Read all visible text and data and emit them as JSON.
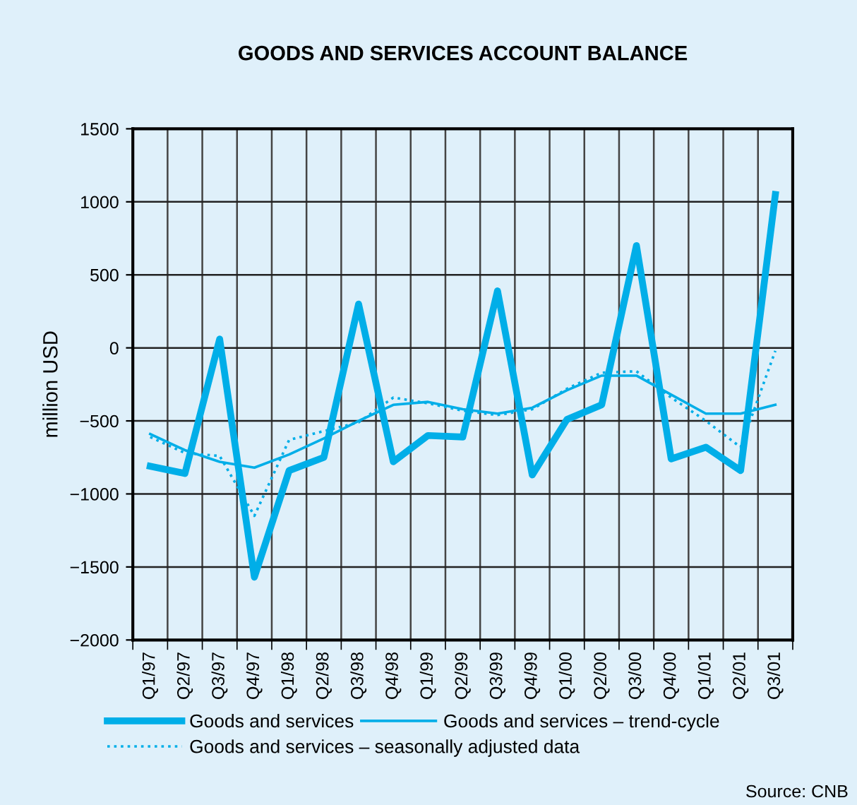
{
  "chart_data": {
    "type": "line",
    "title": "GOODS AND SERVICES ACCOUNT BALANCE",
    "ylabel": "million USD",
    "categories": [
      "Q1/97",
      "Q2/97",
      "Q3/97",
      "Q4/97",
      "Q1/98",
      "Q2/98",
      "Q3/98",
      "Q4/98",
      "Q1/99",
      "Q2/99",
      "Q3/99",
      "Q4/99",
      "Q1/00",
      "Q2/00",
      "Q3/00",
      "Q4/00",
      "Q1/01",
      "Q2/01",
      "Q3/01"
    ],
    "series": [
      {
        "name": "Goods and services",
        "color": "#00aee8",
        "line_style": "solid",
        "values": [
          -810,
          -860,
          60,
          -1570,
          -840,
          -750,
          300,
          -780,
          -600,
          -610,
          390,
          -870,
          -490,
          -390,
          700,
          -760,
          -680,
          -840,
          1050
        ]
      },
      {
        "name": "Goods and services – trend-cycle",
        "color": "#00aee8",
        "line_style": "solid",
        "values": [
          -590,
          -700,
          -780,
          -820,
          -730,
          -620,
          -500,
          -390,
          -370,
          -420,
          -450,
          -410,
          -290,
          -190,
          -190,
          -320,
          -450,
          -450,
          -390
        ]
      },
      {
        "name": "Goods and services – seasonally adjusted data",
        "color": "#00aee8",
        "line_style": "dotted",
        "values": [
          -610,
          -720,
          -740,
          -1150,
          -630,
          -570,
          -510,
          -340,
          -380,
          -430,
          -460,
          -420,
          -280,
          -170,
          -160,
          -340,
          -500,
          -680,
          -20
        ]
      }
    ],
    "ylim": [
      -2000,
      1500
    ],
    "yticks": [
      -2000,
      -1500,
      -1000,
      -500,
      0,
      500,
      1000,
      1500
    ],
    "grid": true,
    "legend": "bottom",
    "marker": "none",
    "annotations": [
      "Source: CNB"
    ]
  }
}
